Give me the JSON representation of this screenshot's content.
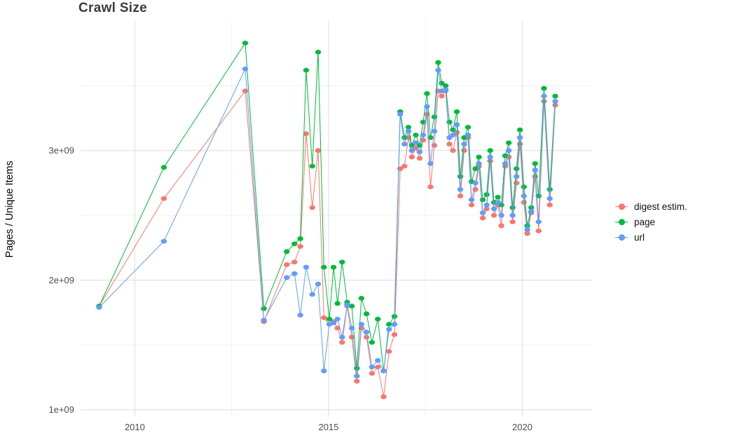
{
  "chart": {
    "title": "Crawl Size",
    "y_axis_title": "Pages / Unique Items"
  },
  "colors": {
    "background": "#ffffff",
    "grid_major": "#e3e3e3",
    "grid_minor": "#f1f1f1",
    "tick_label": "#4d4d4d",
    "title_text": "#3b3b3b"
  },
  "chart_data": {
    "type": "line",
    "title": "Crawl Size",
    "xlabel": "",
    "ylabel": "Pages / Unique Items",
    "y_unit": "values in billions (1e+09)",
    "grid": true,
    "legend_position": "right",
    "xlim": [
      2008.6,
      2021.8
    ],
    "ylim": [
      0.95,
      4.0
    ],
    "x_ticks": [
      2010,
      2015,
      2020
    ],
    "x_tick_labels": [
      "2010",
      "2015",
      "2020"
    ],
    "x_minor_ticks": [
      2012.5,
      2017.5
    ],
    "y_ticks": [
      1,
      2,
      3
    ],
    "y_tick_labels": [
      "1e+09",
      "2e+09",
      "3e+09"
    ],
    "y_minor_ticks": [
      1.5,
      2.5,
      3.5
    ],
    "x": [
      2009.08,
      2010.75,
      2012.85,
      2013.33,
      2013.92,
      2014.12,
      2014.27,
      2014.42,
      2014.58,
      2014.73,
      2014.88,
      2015.02,
      2015.13,
      2015.23,
      2015.35,
      2015.48,
      2015.6,
      2015.73,
      2015.85,
      2015.98,
      2016.12,
      2016.27,
      2016.42,
      2016.56,
      2016.7,
      2016.85,
      2016.96,
      2017.06,
      2017.15,
      2017.25,
      2017.35,
      2017.44,
      2017.54,
      2017.63,
      2017.73,
      2017.83,
      2017.92,
      2018.02,
      2018.12,
      2018.21,
      2018.31,
      2018.4,
      2018.5,
      2018.6,
      2018.69,
      2018.79,
      2018.88,
      2018.98,
      2019.08,
      2019.17,
      2019.27,
      2019.37,
      2019.46,
      2019.56,
      2019.65,
      2019.75,
      2019.85,
      2019.94,
      2020.04,
      2020.13,
      2020.23,
      2020.33,
      2020.42,
      2020.56,
      2020.71,
      2020.85
    ],
    "series": [
      {
        "name": "digest estim.",
        "color": "#F8766D",
        "values": [
          1.8,
          2.63,
          3.46,
          1.68,
          2.12,
          2.14,
          2.26,
          3.13,
          2.56,
          3.0,
          1.71,
          1.66,
          1.68,
          1.63,
          1.52,
          1.8,
          1.56,
          1.22,
          1.63,
          1.56,
          1.28,
          1.33,
          1.1,
          1.45,
          1.58,
          2.86,
          2.88,
          3.1,
          2.95,
          3.02,
          2.94,
          3.08,
          3.28,
          2.72,
          3.04,
          3.46,
          3.42,
          3.46,
          3.05,
          3.0,
          3.14,
          2.65,
          3.0,
          3.1,
          2.58,
          2.7,
          2.88,
          2.48,
          2.55,
          2.92,
          2.5,
          2.58,
          2.42,
          2.88,
          2.95,
          2.45,
          2.75,
          3.05,
          2.6,
          2.36,
          2.52,
          2.8,
          2.38,
          3.38,
          2.58,
          3.35
        ]
      },
      {
        "name": "page",
        "color": "#00BA38",
        "values": [
          1.8,
          2.87,
          3.83,
          1.78,
          2.22,
          2.28,
          2.32,
          3.62,
          2.88,
          3.76,
          2.1,
          1.7,
          2.1,
          1.82,
          2.14,
          1.83,
          1.8,
          1.32,
          1.86,
          1.74,
          1.52,
          1.7,
          1.3,
          1.66,
          1.72,
          3.3,
          3.1,
          3.18,
          3.04,
          3.12,
          3.04,
          3.22,
          3.44,
          3.1,
          3.26,
          3.68,
          3.52,
          3.5,
          3.22,
          3.16,
          3.3,
          2.8,
          3.1,
          3.18,
          2.76,
          2.86,
          2.95,
          2.62,
          2.66,
          3.0,
          2.6,
          2.64,
          2.58,
          2.96,
          3.06,
          2.56,
          2.86,
          3.16,
          2.72,
          2.42,
          2.56,
          2.9,
          2.65,
          3.48,
          2.7,
          3.42
        ]
      },
      {
        "name": "url",
        "color": "#619CFF",
        "values": [
          1.79,
          2.3,
          3.63,
          1.69,
          2.02,
          2.05,
          1.73,
          2.1,
          1.89,
          1.97,
          1.3,
          1.66,
          1.67,
          1.7,
          1.56,
          1.81,
          1.63,
          1.26,
          1.66,
          1.6,
          1.33,
          1.38,
          1.3,
          1.62,
          1.66,
          3.28,
          3.05,
          3.15,
          3.0,
          3.06,
          2.99,
          3.12,
          3.34,
          2.9,
          3.15,
          3.62,
          3.46,
          3.47,
          3.1,
          3.12,
          3.2,
          2.7,
          3.05,
          3.12,
          2.62,
          2.75,
          2.9,
          2.52,
          2.58,
          2.95,
          2.55,
          2.6,
          2.5,
          2.9,
          3.0,
          2.5,
          2.8,
          3.1,
          2.65,
          2.39,
          2.53,
          2.85,
          2.45,
          3.42,
          2.63,
          3.38
        ]
      }
    ]
  }
}
